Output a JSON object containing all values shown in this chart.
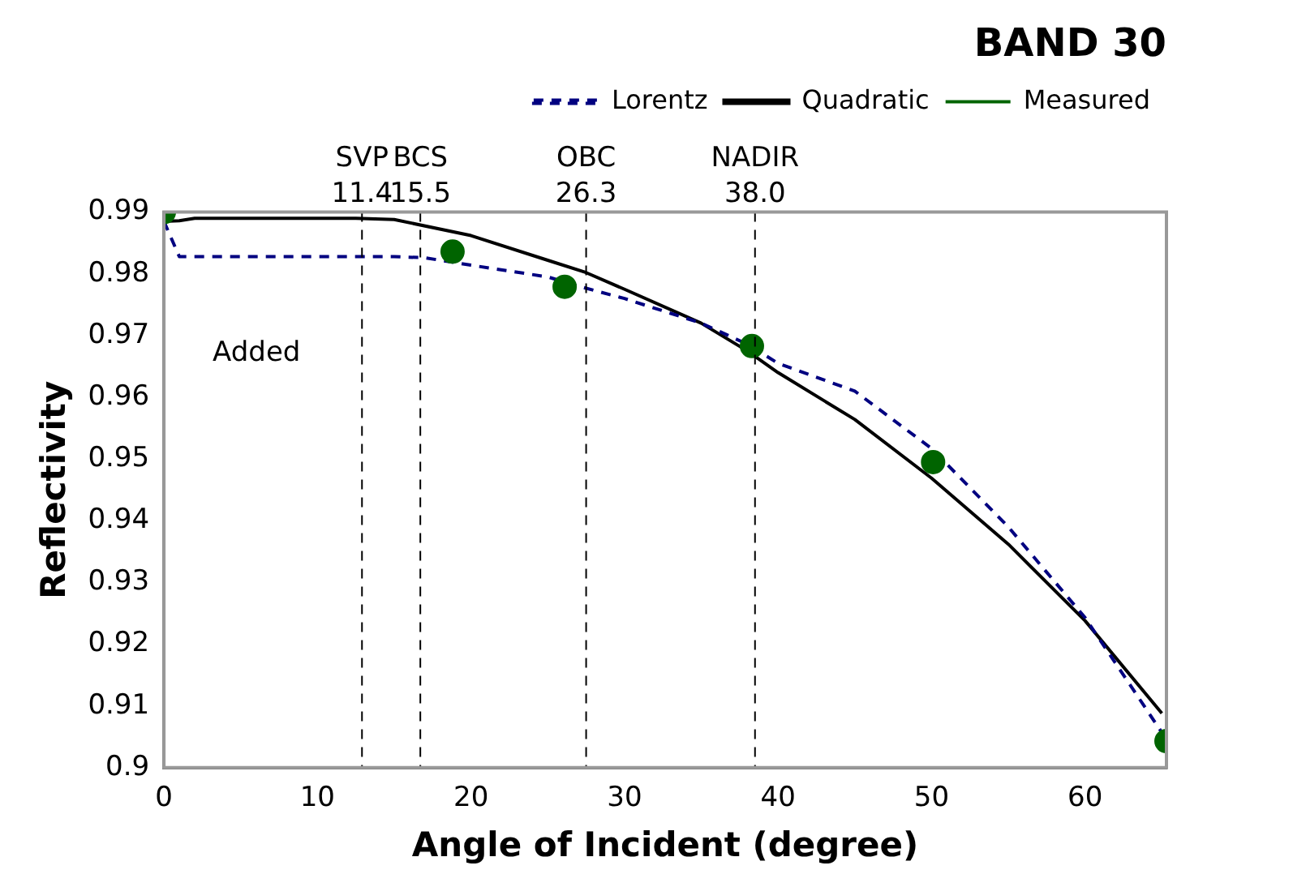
{
  "chart_data": {
    "type": "line",
    "title": "BAND 30",
    "xlabel": "Angle of Incident (degree)",
    "ylabel": "Reflectivity",
    "xlim": [
      0,
      65.3
    ],
    "xticks": [
      0,
      10,
      20,
      30,
      40,
      50,
      60
    ],
    "ylim": [
      0.9,
      0.99
    ],
    "yticks": [
      0.9,
      0.91,
      0.92,
      0.93,
      0.94,
      0.95,
      0.96,
      0.97,
      0.98,
      0.99
    ],
    "legend": "top right",
    "grid": false,
    "series": [
      {
        "name": "Lorentz",
        "type": "line",
        "line_style": "dashed",
        "marker": "none",
        "color": "#000080",
        "x": [
          0,
          1,
          5,
          10,
          15,
          17,
          20,
          25,
          27,
          30,
          35,
          38,
          40,
          45,
          50,
          55,
          60,
          65
        ],
        "values": [
          0.9885,
          0.9828,
          0.9828,
          0.9828,
          0.9828,
          0.9826,
          0.9814,
          0.9795,
          0.978,
          0.976,
          0.972,
          0.9686,
          0.9655,
          0.961,
          0.9517,
          0.939,
          0.9243,
          0.9057
        ]
      },
      {
        "name": "Quadratic",
        "type": "line",
        "line_style": "solid",
        "marker": "none",
        "color": "#000000",
        "x": [
          0,
          1,
          2,
          5,
          10,
          12.5,
          15,
          20,
          25,
          27.5,
          30,
          35,
          38,
          40,
          45,
          50,
          55,
          60,
          65
        ],
        "values": [
          0.9885,
          0.9886,
          0.989,
          0.989,
          0.989,
          0.989,
          0.9888,
          0.9862,
          0.9822,
          0.9802,
          0.9775,
          0.972,
          0.9675,
          0.964,
          0.9564,
          0.9469,
          0.9362,
          0.9238,
          0.9088
        ]
      },
      {
        "name": "Measured",
        "type": "scatter",
        "marker": "circle",
        "color": "#006400",
        "x": [
          0,
          18.8,
          26.1,
          38.3,
          50.1,
          65.3
        ],
        "values": [
          0.99,
          0.9836,
          0.9779,
          0.9683,
          0.9495,
          0.9043
        ]
      }
    ],
    "ref_lines": [
      {
        "axis": "x",
        "value": 12.9,
        "label": "SVP\n11.4",
        "line_style": "dashed",
        "color": "#000000"
      },
      {
        "axis": "x",
        "value": 16.7,
        "label": "BCS\n15.5",
        "line_style": "dashed",
        "color": "#000000"
      },
      {
        "axis": "x",
        "value": 27.5,
        "label": "OBC\n26.3",
        "line_style": "dashed",
        "color": "#000000"
      },
      {
        "axis": "x",
        "value": 38.5,
        "label": "NADIR\n38.0",
        "line_style": "dashed",
        "color": "#000000"
      }
    ],
    "annotations": [
      "Added"
    ]
  }
}
